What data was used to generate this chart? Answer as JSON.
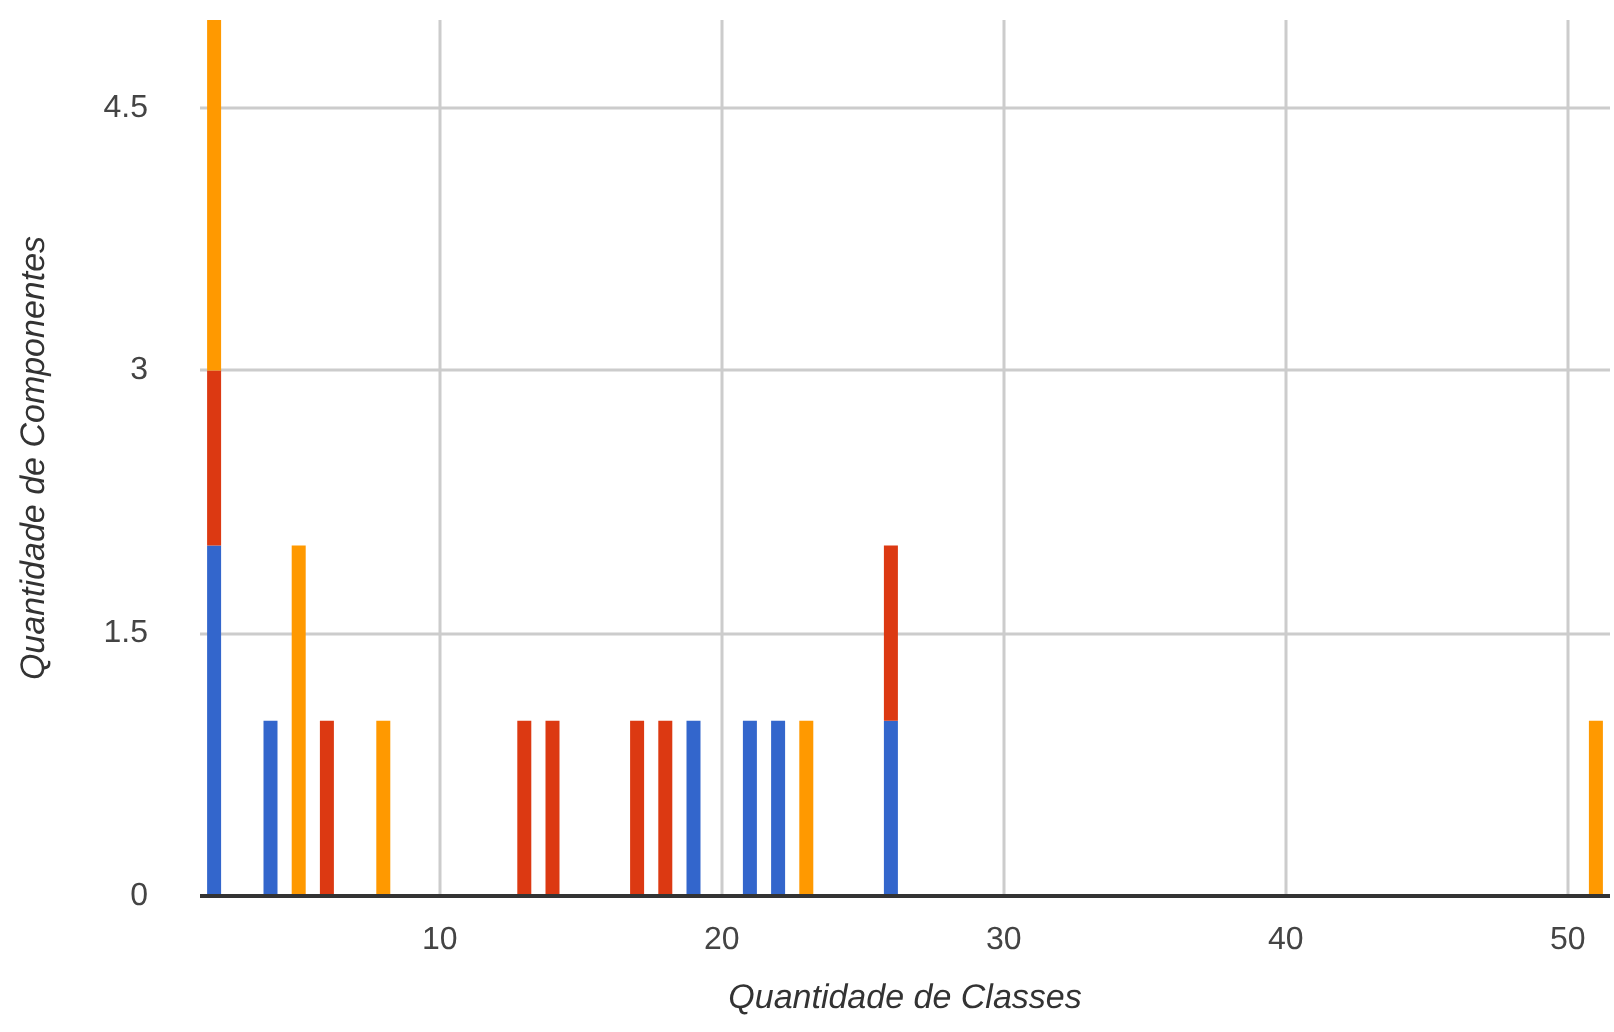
{
  "chart_data": {
    "type": "bar",
    "stacked": true,
    "xlabel": "Quantidade de Classes",
    "ylabel": "Quantidade de Componentes",
    "x": [
      2,
      4,
      5,
      6,
      8,
      13,
      14,
      17,
      18,
      19,
      21,
      22,
      23,
      26,
      51
    ],
    "series": [
      {
        "color": "#3366cc",
        "values": [
          2,
          1,
          0,
          0,
          0,
          0,
          0,
          0,
          0,
          1,
          1,
          1,
          0,
          1,
          0
        ]
      },
      {
        "color": "#dc3912",
        "values": [
          1,
          0,
          0,
          1,
          0,
          1,
          1,
          1,
          1,
          0,
          0,
          0,
          0,
          1,
          0
        ]
      },
      {
        "color": "#ff9900",
        "values": [
          2,
          0,
          2,
          0,
          1,
          0,
          0,
          0,
          0,
          0,
          0,
          0,
          1,
          0,
          1
        ]
      }
    ],
    "xlim": [
      1.5,
      51.5
    ],
    "xticks": [
      10,
      20,
      30,
      40,
      50
    ],
    "ylim": [
      0,
      5
    ],
    "yticks": [
      0,
      1.5,
      3,
      4.5
    ],
    "grid": true
  }
}
